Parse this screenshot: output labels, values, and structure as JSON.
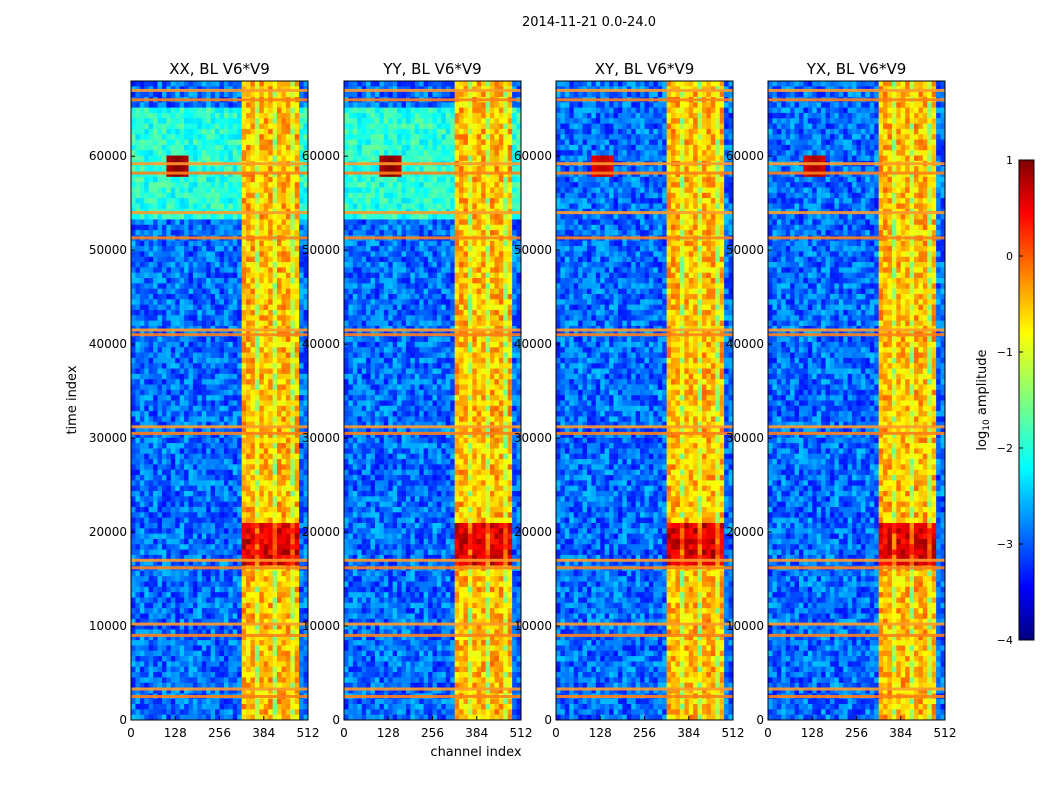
{
  "figure": {
    "suptitle": "2014-11-21 0.0-24.0",
    "xlabel": "channel index",
    "ylabel": "time index"
  },
  "colorbar": {
    "label": "log10 amplitude",
    "label_base": "log",
    "label_sub": "10",
    "label_rest": " amplitude",
    "ticks": [
      1,
      0,
      -1,
      -2,
      -3,
      -4
    ],
    "tick_labels": [
      "1",
      "0",
      "−1",
      "−2",
      "−3",
      "−4"
    ],
    "range": [
      -4,
      1
    ],
    "colormap": "jet"
  },
  "chart_data": [
    {
      "type": "heatmap",
      "title": "XX, BL V6*V9",
      "xlabel": "",
      "ylabel": "time index",
      "xlim": [
        0,
        512
      ],
      "ylim": [
        0,
        68000
      ],
      "xticks": [
        0,
        128,
        256,
        384,
        512
      ],
      "yticks": [
        0,
        10000,
        20000,
        30000,
        40000,
        50000,
        60000
      ],
      "bright_band_channels": [
        325,
        480
      ],
      "flagged_time_rows": [
        2500,
        3300,
        9000,
        10200,
        16200,
        17000,
        30500,
        31200,
        41000,
        41500,
        51300,
        54000,
        58200,
        59200,
        66000,
        67000
      ],
      "peak_log_amplitude": 1.0
    },
    {
      "type": "heatmap",
      "title": "YY, BL V6*V9",
      "xlabel": "channel index",
      "ylabel": "",
      "xlim": [
        0,
        512
      ],
      "ylim": [
        0,
        68000
      ],
      "xticks": [
        0,
        128,
        256,
        384,
        512
      ],
      "yticks": [
        0,
        10000,
        20000,
        30000,
        40000,
        50000,
        60000
      ],
      "bright_band_channels": [
        325,
        480
      ],
      "flagged_time_rows": [
        2500,
        3300,
        9000,
        10200,
        16200,
        17000,
        30500,
        31200,
        41000,
        41500,
        51300,
        54000,
        58200,
        59200,
        66000,
        67000
      ],
      "peak_log_amplitude": 1.0
    },
    {
      "type": "heatmap",
      "title": "XY, BL V6*V9",
      "xlabel": "",
      "ylabel": "",
      "xlim": [
        0,
        512
      ],
      "ylim": [
        0,
        68000
      ],
      "xticks": [
        0,
        128,
        256,
        384,
        512
      ],
      "yticks": [
        0,
        10000,
        20000,
        30000,
        40000,
        50000,
        60000
      ],
      "bright_band_channels": [
        325,
        480
      ],
      "flagged_time_rows": [
        2500,
        3300,
        9000,
        10200,
        16200,
        17000,
        30500,
        31200,
        41000,
        41500,
        51300,
        54000,
        58200,
        59200,
        66000,
        67000
      ],
      "peak_log_amplitude": 0.7
    },
    {
      "type": "heatmap",
      "title": "YX, BL V6*V9",
      "xlabel": "",
      "ylabel": "",
      "xlim": [
        0,
        512
      ],
      "ylim": [
        0,
        68000
      ],
      "xticks": [
        0,
        128,
        256,
        384,
        512
      ],
      "yticks": [
        0,
        10000,
        20000,
        30000,
        40000,
        50000,
        60000
      ],
      "bright_band_channels": [
        325,
        480
      ],
      "flagged_time_rows": [
        2500,
        3300,
        9000,
        10200,
        16200,
        17000,
        30500,
        31200,
        41000,
        41500,
        51300,
        54000,
        58200,
        59200,
        66000,
        67000
      ],
      "peak_log_amplitude": 0.8
    }
  ]
}
